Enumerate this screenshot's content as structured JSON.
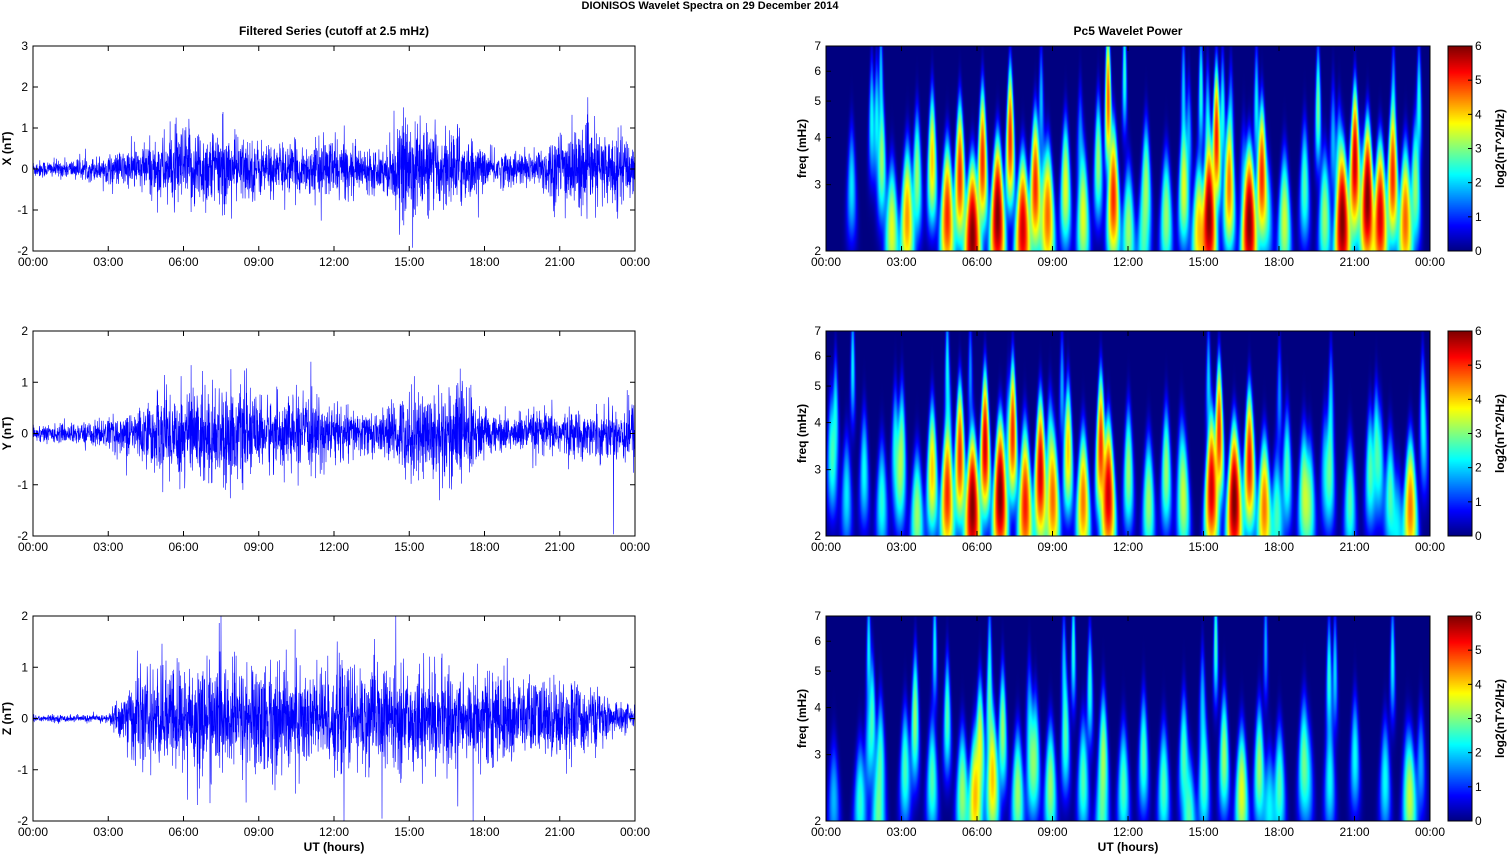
{
  "figure_title": "DIONISOS Wavelet Spectra on 29 December  2014",
  "chart_data": [
    {
      "type": "line",
      "title": "Filtered Series (cutoff at 2.5 mHz)",
      "component": "X",
      "ylabel": "X (nT)",
      "ylim": [
        -2,
        3
      ],
      "yticks": [
        "-2",
        "-1",
        "0",
        "1",
        "2",
        "3"
      ],
      "xlim_hours": [
        0,
        24
      ],
      "xticks": [
        "00:00",
        "03:00",
        "06:00",
        "09:00",
        "12:00",
        "15:00",
        "18:00",
        "21:00",
        "00:00"
      ],
      "xlabel": "",
      "color": "#0000ff",
      "amplitude_envelope_nT_hourly": [
        0.25,
        0.25,
        0.3,
        0.4,
        0.6,
        0.9,
        1.2,
        1.2,
        1.0,
        0.8,
        0.7,
        0.7,
        0.9,
        0.6,
        0.6,
        1.6,
        1.0,
        1.2,
        0.5,
        0.5,
        0.5,
        1.2,
        1.1,
        1.0,
        0.9
      ]
    },
    {
      "type": "line",
      "title": "",
      "component": "Y",
      "ylabel": "Y (nT)",
      "ylim": [
        -2,
        2
      ],
      "yticks": [
        "-2",
        "-1",
        "0",
        "1",
        "2"
      ],
      "xlim_hours": [
        0,
        24
      ],
      "xticks": [
        "00:00",
        "03:00",
        "06:00",
        "09:00",
        "12:00",
        "15:00",
        "18:00",
        "21:00",
        "00:00"
      ],
      "xlabel": "",
      "color": "#0000ff",
      "amplitude_envelope_nT_hourly": [
        0.2,
        0.2,
        0.25,
        0.35,
        0.5,
        0.9,
        1.2,
        1.1,
        1.1,
        0.8,
        0.8,
        0.8,
        0.7,
        0.5,
        0.5,
        1.0,
        1.0,
        1.3,
        0.5,
        0.4,
        0.5,
        0.5,
        0.5,
        0.6,
        0.8
      ]
    },
    {
      "type": "line",
      "title": "",
      "component": "Z",
      "ylabel": "Z (nT)",
      "ylim": [
        -2,
        2
      ],
      "yticks": [
        "-2",
        "-1",
        "0",
        "1",
        "2"
      ],
      "xlim_hours": [
        0,
        24
      ],
      "xticks": [
        "00:00",
        "03:00",
        "06:00",
        "09:00",
        "12:00",
        "15:00",
        "18:00",
        "21:00",
        "00:00"
      ],
      "xlabel": "UT (hours)",
      "color": "#0000ff",
      "amplitude_envelope_nT_hourly": [
        0.08,
        0.08,
        0.08,
        0.1,
        1.0,
        1.1,
        1.3,
        1.3,
        1.2,
        1.3,
        1.3,
        1.2,
        1.2,
        1.2,
        1.1,
        1.1,
        1.1,
        1.1,
        1.0,
        1.0,
        0.9,
        0.9,
        0.8,
        0.4,
        0.3
      ]
    },
    {
      "type": "heatmap",
      "title": "Pc5 Wavelet Power",
      "component": "X",
      "ylabel": "freq (mHz)",
      "yscale": "log",
      "ylim": [
        2,
        7
      ],
      "yticks": [
        "2",
        "3",
        "4",
        "5",
        "6",
        "7"
      ],
      "xlim_hours": [
        0,
        24
      ],
      "xticks": [
        "00:00",
        "03:00",
        "06:00",
        "09:00",
        "12:00",
        "15:00",
        "18:00",
        "21:00",
        "00:00"
      ],
      "xlabel": "",
      "colorbar": {
        "label": "log2(nT^2/Hz)",
        "range": [
          0,
          6
        ],
        "ticks": [
          "0",
          "1",
          "2",
          "3",
          "4",
          "5",
          "6"
        ],
        "colormap": "jet"
      },
      "power_events_hour_mHz_log2power": [
        [
          1.0,
          3.0,
          1.8
        ],
        [
          1.8,
          4.5,
          2
        ],
        [
          2.2,
          3.5,
          3
        ],
        [
          2.6,
          2.3,
          3.5
        ],
        [
          3.2,
          2.4,
          4
        ],
        [
          3.6,
          3.2,
          3
        ],
        [
          4.2,
          3.5,
          4
        ],
        [
          4.8,
          2.5,
          5
        ],
        [
          5.3,
          3.2,
          5
        ],
        [
          5.8,
          2.2,
          6
        ],
        [
          6.2,
          3.5,
          5
        ],
        [
          6.8,
          2.5,
          6
        ],
        [
          7.3,
          4.0,
          5
        ],
        [
          7.8,
          2.3,
          5.5
        ],
        [
          8.3,
          3.0,
          5
        ],
        [
          8.8,
          2.5,
          4.5
        ],
        [
          9.5,
          3.0,
          3.5
        ],
        [
          10.2,
          2.5,
          3.5
        ],
        [
          10.8,
          3.5,
          3
        ],
        [
          11.2,
          5.0,
          4.5
        ],
        [
          11.4,
          2.8,
          5
        ],
        [
          12.0,
          2.3,
          3
        ],
        [
          12.7,
          3.0,
          3
        ],
        [
          13.5,
          2.5,
          3
        ],
        [
          14.2,
          3.0,
          3.5
        ],
        [
          14.8,
          2.3,
          4
        ],
        [
          15.2,
          2.5,
          6
        ],
        [
          15.5,
          4.0,
          5
        ],
        [
          16.0,
          3.0,
          4.5
        ],
        [
          16.8,
          2.4,
          6
        ],
        [
          17.3,
          3.2,
          5
        ],
        [
          18.2,
          2.5,
          3
        ],
        [
          19.0,
          3.0,
          2.5
        ],
        [
          19.8,
          2.5,
          3
        ],
        [
          20.5,
          2.4,
          6
        ],
        [
          21.0,
          3.5,
          5.5
        ],
        [
          21.5,
          2.8,
          6
        ],
        [
          22.0,
          2.5,
          5.5
        ],
        [
          22.5,
          3.2,
          5
        ],
        [
          23.0,
          2.4,
          4.5
        ],
        [
          23.4,
          3.0,
          3
        ]
      ]
    },
    {
      "type": "heatmap",
      "title": "",
      "component": "Y",
      "ylabel": "freq (mHz)",
      "yscale": "log",
      "ylim": [
        2,
        7
      ],
      "yticks": [
        "2",
        "3",
        "4",
        "5",
        "6",
        "7"
      ],
      "xlim_hours": [
        0,
        24
      ],
      "xticks": [
        "00:00",
        "03:00",
        "06:00",
        "09:00",
        "12:00",
        "15:00",
        "18:00",
        "21:00",
        "00:00"
      ],
      "xlabel": "",
      "colorbar": {
        "label": "log2(nT^2/Hz)",
        "range": [
          0,
          6
        ],
        "ticks": [
          "0",
          "1",
          "2",
          "3",
          "4",
          "5",
          "6"
        ],
        "colormap": "jet"
      },
      "power_events_hour_mHz_log2power": [
        [
          0.8,
          2.6,
          1.8
        ],
        [
          1.5,
          3.0,
          2
        ],
        [
          2.2,
          2.5,
          2.2
        ],
        [
          3.0,
          3.5,
          2.5
        ],
        [
          3.6,
          2.3,
          3
        ],
        [
          4.2,
          3.0,
          4
        ],
        [
          4.8,
          2.6,
          5
        ],
        [
          5.3,
          3.3,
          5
        ],
        [
          5.8,
          2.4,
          6
        ],
        [
          6.3,
          3.5,
          5.5
        ],
        [
          6.9,
          2.6,
          6
        ],
        [
          7.4,
          3.8,
          5
        ],
        [
          7.9,
          2.4,
          5
        ],
        [
          8.5,
          3.0,
          5.5
        ],
        [
          9.0,
          2.5,
          4.5
        ],
        [
          9.6,
          3.4,
          4
        ],
        [
          10.2,
          2.5,
          4.5
        ],
        [
          10.9,
          3.5,
          5
        ],
        [
          11.2,
          2.6,
          5.5
        ],
        [
          12.0,
          3.0,
          3
        ],
        [
          12.8,
          2.5,
          3
        ],
        [
          13.5,
          3.0,
          3
        ],
        [
          14.2,
          2.5,
          3
        ],
        [
          15.3,
          2.7,
          5.5
        ],
        [
          15.6,
          3.8,
          5
        ],
        [
          16.2,
          2.5,
          6
        ],
        [
          16.8,
          3.2,
          5
        ],
        [
          17.4,
          2.4,
          4.5
        ],
        [
          18.3,
          3.0,
          2.5
        ],
        [
          19.2,
          2.5,
          2.5
        ],
        [
          20.0,
          3.0,
          2.5
        ],
        [
          20.8,
          2.5,
          2.5
        ],
        [
          21.6,
          3.0,
          2.5
        ],
        [
          22.4,
          2.6,
          2.5
        ],
        [
          23.2,
          2.4,
          4.5
        ]
      ]
    },
    {
      "type": "heatmap",
      "title": "",
      "component": "Z",
      "ylabel": "freq (mHz)",
      "yscale": "log",
      "ylim": [
        2,
        7
      ],
      "yticks": [
        "2",
        "3",
        "4",
        "5",
        "6",
        "7"
      ],
      "xlim_hours": [
        0,
        24
      ],
      "xticks": [
        "00:00",
        "03:00",
        "06:00",
        "09:00",
        "12:00",
        "15:00",
        "18:00",
        "21:00",
        "00:00"
      ],
      "xlabel": "UT (hours)",
      "colorbar": {
        "label": "log2(nT^2/Hz)",
        "range": [
          0,
          6
        ],
        "ticks": [
          "0",
          "1",
          "2",
          "3",
          "4",
          "5",
          "6"
        ],
        "colormap": "jet"
      },
      "power_events_hour_mHz_log2power": [
        [
          3.5,
          3.5,
          2
        ],
        [
          4.2,
          2.6,
          2.5
        ],
        [
          4.8,
          3.8,
          2.5
        ],
        [
          5.4,
          2.4,
          3
        ],
        [
          5.9,
          2.3,
          4
        ],
        [
          6.1,
          3.2,
          3.5
        ],
        [
          6.6,
          2.6,
          4
        ],
        [
          7.0,
          3.5,
          3
        ],
        [
          7.6,
          2.4,
          3
        ],
        [
          8.3,
          3.0,
          2.5
        ],
        [
          8.9,
          2.5,
          3
        ],
        [
          9.5,
          3.4,
          2.5
        ],
        [
          10.2,
          2.6,
          2.5
        ],
        [
          11.0,
          3.0,
          3
        ],
        [
          11.8,
          2.5,
          2.5
        ],
        [
          12.6,
          3.0,
          2.5
        ],
        [
          13.4,
          2.5,
          2.5
        ],
        [
          14.2,
          3.0,
          2.5
        ],
        [
          15.0,
          2.6,
          2.5
        ],
        [
          15.8,
          3.0,
          3
        ],
        [
          16.5,
          2.4,
          3.5
        ],
        [
          17.2,
          2.8,
          3
        ],
        [
          18.0,
          2.5,
          2.5
        ],
        [
          19.0,
          3.0,
          2
        ],
        [
          20.0,
          2.6,
          2
        ],
        [
          21.0,
          3.0,
          2
        ],
        [
          22.2,
          2.6,
          2
        ],
        [
          23.2,
          2.3,
          3
        ]
      ]
    }
  ]
}
